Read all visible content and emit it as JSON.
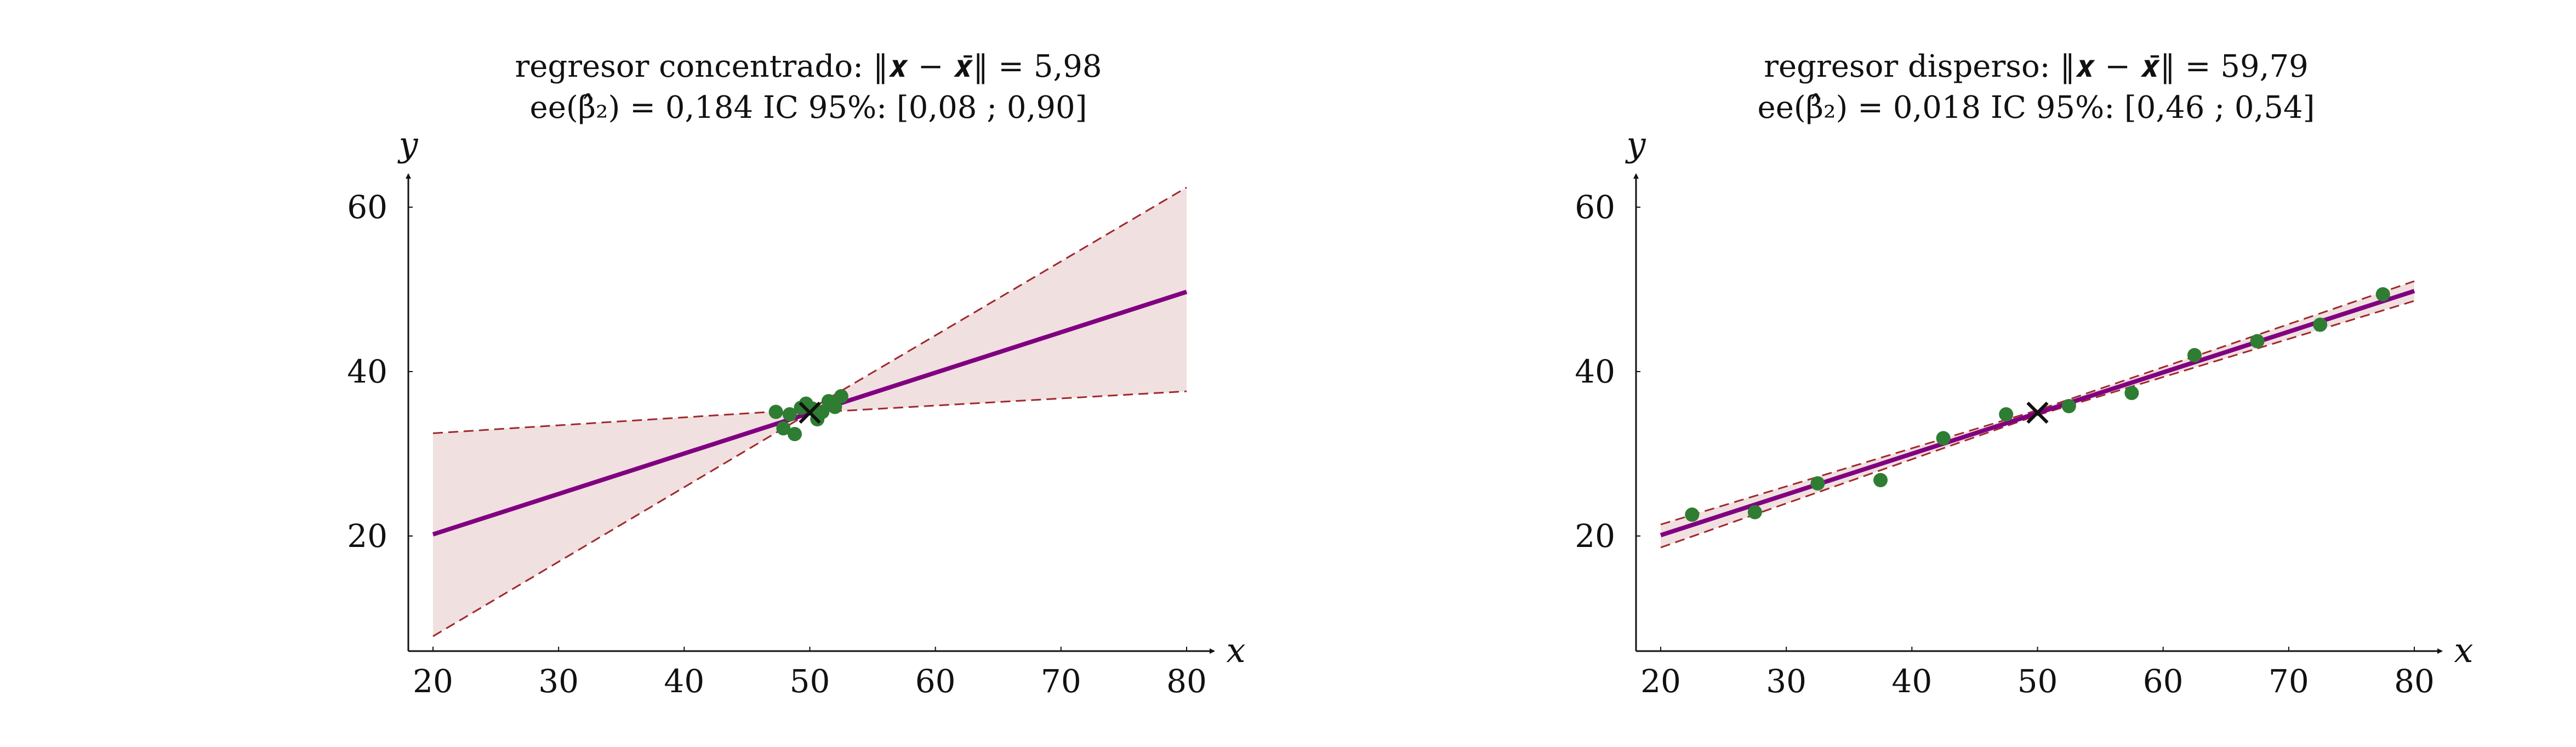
{
  "chart_data": [
    {
      "type": "scatter",
      "title_line1": "regresor concentrado: ‖𝒙 − 𝒙̄‖ = 5,98",
      "title_line2": "ee(β̂₂) = 0,184     IC 95%: [0,08 ; 0,90]",
      "xlabel": "x",
      "ylabel": "y",
      "xlim": [
        18,
        82
      ],
      "ylim": [
        6,
        64
      ],
      "xticks": [
        "20",
        "30",
        "40",
        "50",
        "60",
        "70",
        "80"
      ],
      "yticks": [
        "20",
        "40",
        "60"
      ],
      "grid": false,
      "series": [
        {
          "kind": "points",
          "color": "#2e7d32",
          "x": [
            47.3,
            47.9,
            48.4,
            48.8,
            49.3,
            49.7,
            50.2,
            50.6,
            51.0,
            51.5,
            52.0,
            52.5
          ],
          "y": [
            35.1,
            33.1,
            34.8,
            32.4,
            35.6,
            36.1,
            35.5,
            34.2,
            35.1,
            36.4,
            35.7,
            37.0
          ]
        },
        {
          "kind": "mean",
          "marker": "x",
          "x": [
            50
          ],
          "y": [
            35
          ]
        },
        {
          "kind": "fit",
          "color": "#800080",
          "x": [
            20,
            80
          ],
          "y": [
            20.2,
            49.7
          ]
        },
        {
          "kind": "band",
          "fill": "#f0e0e0",
          "stroke": "#a0282d",
          "x": [
            20,
            50,
            80
          ],
          "upper": [
            32.5,
            35.4,
            62.4
          ],
          "lower": [
            7.8,
            35.0,
            37.6
          ]
        }
      ]
    },
    {
      "type": "scatter",
      "title_line1": "regresor disperso: ‖𝒙 − 𝒙̄‖ = 59,79",
      "title_line2": "ee(β̂₂) = 0,018     IC 95%: [0,46 ; 0,54]",
      "xlabel": "x",
      "ylabel": "y",
      "xlim": [
        18,
        82
      ],
      "ylim": [
        6,
        64
      ],
      "xticks": [
        "20",
        "30",
        "40",
        "50",
        "60",
        "70",
        "80"
      ],
      "yticks": [
        "20",
        "40",
        "60"
      ],
      "grid": false,
      "series": [
        {
          "kind": "points",
          "color": "#2e7d32",
          "x": [
            22.5,
            27.5,
            32.5,
            37.5,
            42.5,
            47.5,
            52.5,
            57.5,
            62.5,
            67.5,
            72.5,
            77.5
          ],
          "y": [
            22.6,
            22.9,
            26.4,
            26.8,
            31.9,
            34.8,
            35.8,
            37.4,
            42.0,
            43.7,
            45.7,
            49.4
          ]
        },
        {
          "kind": "mean",
          "marker": "x",
          "x": [
            50
          ],
          "y": [
            35
          ]
        },
        {
          "kind": "fit",
          "color": "#800080",
          "x": [
            20,
            80
          ],
          "y": [
            20.1,
            49.8
          ]
        },
        {
          "kind": "band",
          "fill": "#f0e0e0",
          "stroke": "#a0282d",
          "x": [
            20,
            50,
            80
          ],
          "upper": [
            21.4,
            35.3,
            51.0
          ],
          "lower": [
            18.6,
            34.7,
            48.6
          ]
        }
      ]
    }
  ]
}
